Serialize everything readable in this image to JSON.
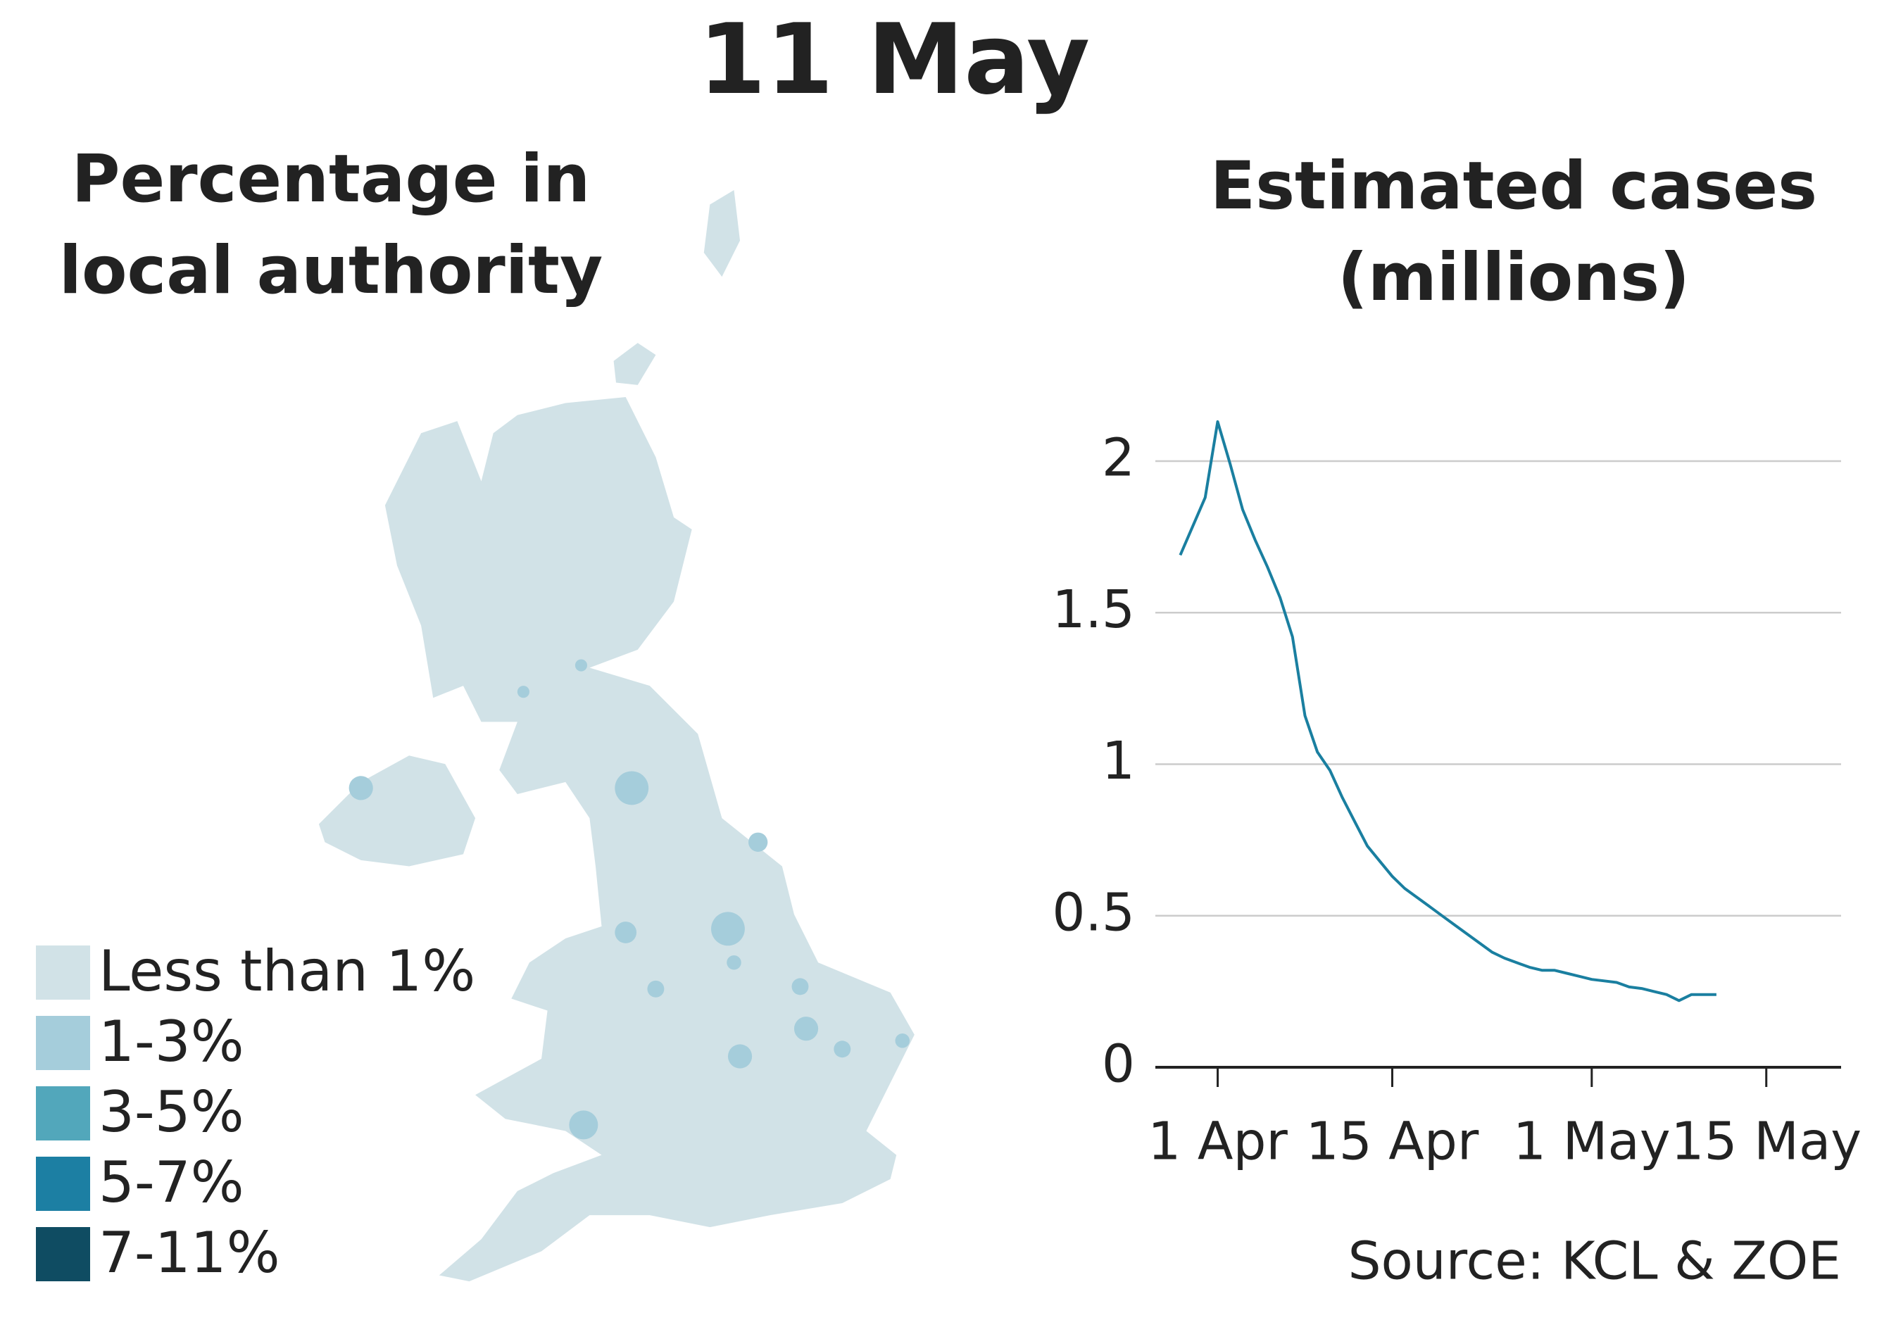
{
  "title": "11 May",
  "map": {
    "title": "Percentage in local authority",
    "legend": [
      {
        "label": "Less than 1%",
        "color": "#d1e2e7"
      },
      {
        "label": "1-3%",
        "color": "#a5cddb"
      },
      {
        "label": "3-5%",
        "color": "#52a7bb"
      },
      {
        "label": "5-7%",
        "color": "#1c7fa3"
      },
      {
        "label": "7-11%",
        "color": "#0f4c62"
      }
    ]
  },
  "chart_data": {
    "type": "line",
    "title": "Estimated cases (millions)",
    "x": [
      "29 Mar",
      "31 Mar",
      "1 Apr",
      "2 Apr",
      "3 Apr",
      "4 Apr",
      "5 Apr",
      "6 Apr",
      "7 Apr",
      "8 Apr",
      "9 Apr",
      "10 Apr",
      "11 Apr",
      "12 Apr",
      "13 Apr",
      "14 Apr",
      "15 Apr",
      "16 Apr",
      "17 Apr",
      "18 Apr",
      "19 Apr",
      "20 Apr",
      "21 Apr",
      "22 Apr",
      "23 Apr",
      "24 Apr",
      "25 Apr",
      "26 Apr",
      "27 Apr",
      "28 Apr",
      "29 Apr",
      "30 Apr",
      "1 May",
      "2 May",
      "3 May",
      "4 May",
      "5 May",
      "6 May",
      "7 May",
      "8 May",
      "9 May",
      "10 May",
      "11 May"
    ],
    "series": [
      {
        "color": "#1a7fa0",
        "values": [
          1.69,
          1.88,
          2.13,
          1.99,
          1.84,
          1.74,
          1.65,
          1.55,
          1.42,
          1.16,
          1.04,
          0.98,
          0.89,
          0.81,
          0.73,
          0.68,
          0.63,
          0.59,
          0.56,
          0.53,
          0.5,
          0.47,
          0.44,
          0.41,
          0.38,
          0.36,
          0.345,
          0.33,
          0.32,
          0.32,
          0.31,
          0.3,
          0.29,
          0.285,
          0.28,
          0.265,
          0.26,
          0.25,
          0.24,
          0.22,
          0.24,
          0.24,
          0.24
        ]
      }
    ],
    "xlim": [
      "27 Mar",
      "21 May"
    ],
    "xticks": [
      "1 Apr",
      "15 Apr",
      "1 May",
      "15 May"
    ],
    "ylim": [
      0,
      2.2
    ],
    "yticks": [
      0,
      0.5,
      1,
      1.5,
      2
    ],
    "grid": true,
    "source": "Source: KCL & ZOE"
  }
}
